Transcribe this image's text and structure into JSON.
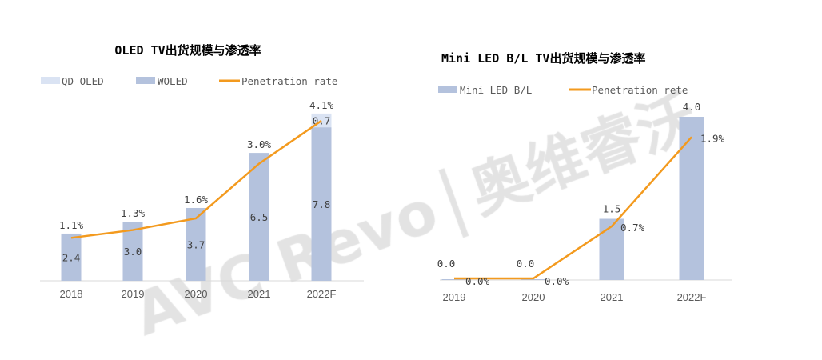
{
  "watermark": {
    "text": "AVC Revo",
    "separator": "|",
    "cn": "奥维睿沃"
  },
  "colors": {
    "bar": "#b4c2dd",
    "bar_light": "#dae3f3",
    "line": "#f39a1e",
    "axis": "#d9d9d9"
  },
  "chart_data": [
    {
      "type": "bar+line",
      "title": "OLED TV出货规模与渗透率",
      "categories": [
        "2018",
        "2019",
        "2020",
        "2021",
        "2022F"
      ],
      "series": [
        {
          "name": "QD-OLED",
          "type": "bar",
          "stacked": true,
          "values": [
            null,
            null,
            null,
            null,
            0.7
          ],
          "labels": [
            "",
            "",
            "",
            "",
            "0.7"
          ]
        },
        {
          "name": "WOLED",
          "type": "bar",
          "stacked": true,
          "values": [
            2.4,
            3.0,
            3.7,
            6.5,
            7.8
          ],
          "labels": [
            "2.4",
            "3.0",
            "3.7",
            "6.5",
            "7.8"
          ]
        },
        {
          "name": "Penetration rate",
          "type": "line",
          "values": [
            1.1,
            1.3,
            1.6,
            3.0,
            4.1
          ],
          "labels": [
            "1.1%",
            "1.3%",
            "1.6%",
            "3.0%",
            "4.1%"
          ]
        }
      ],
      "legend": "top",
      "grid": false
    },
    {
      "type": "bar+line",
      "title": "Mini LED B/L TV出货规模与渗透率",
      "categories": [
        "2019",
        "2020",
        "2021",
        "2022F"
      ],
      "series": [
        {
          "name": "Mini LED B/L",
          "type": "bar",
          "values": [
            0.0,
            0.0,
            1.5,
            4.0
          ],
          "labels": [
            "0.0",
            "0.0",
            "1.5",
            "4.0"
          ]
        },
        {
          "name": "Penetration rete",
          "type": "line",
          "values": [
            0.0,
            0.0,
            0.7,
            1.9
          ],
          "labels": [
            "0.0%",
            "0.0%",
            "0.7%",
            "1.9%"
          ]
        }
      ],
      "legend": "top",
      "grid": false
    }
  ]
}
